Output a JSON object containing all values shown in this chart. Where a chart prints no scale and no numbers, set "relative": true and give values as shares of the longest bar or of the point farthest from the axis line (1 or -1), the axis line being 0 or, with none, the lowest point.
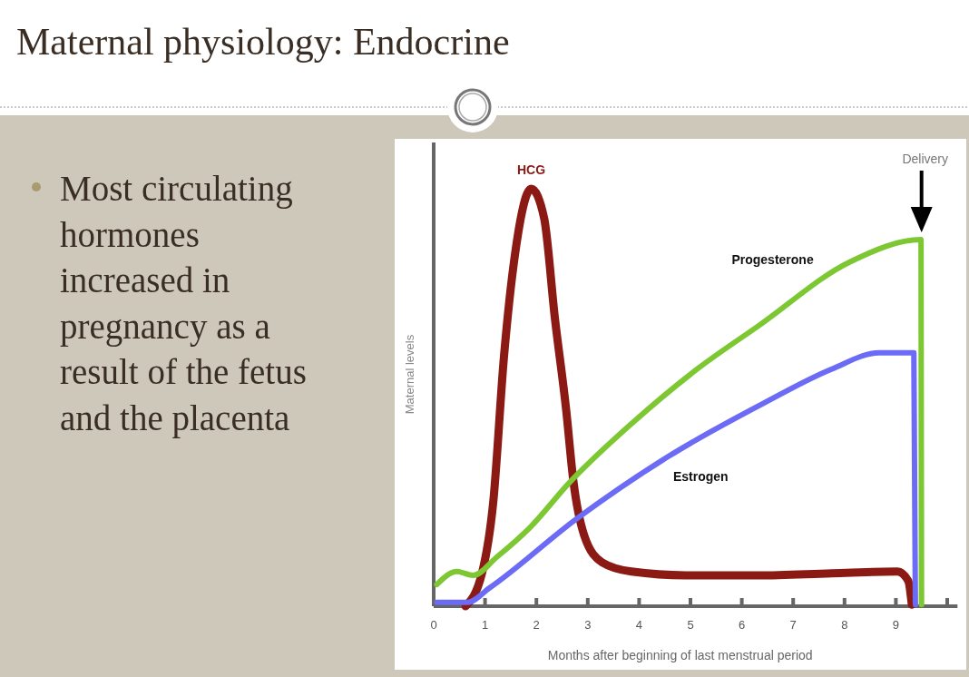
{
  "chart_data": {
    "type": "line",
    "title": "Maternal physiology: Endocrine",
    "xlabel": "Months after beginning of last menstrual period",
    "ylabel": "Maternal levels",
    "relative": true,
    "xlim": [
      0,
      10.2
    ],
    "xticks": [
      0,
      1,
      2,
      3,
      4,
      5,
      6,
      7,
      8,
      9,
      {
        "value": 10,
        "label": null
      }
    ],
    "grid": false,
    "annotations": [
      "Most circulating hormones increased in pregnancy as a result of the fetus and the placenta",
      "Delivery"
    ],
    "series": [
      {
        "name": "HCG",
        "color": "#8b1a14",
        "x": [
          0.62,
          0.94,
          1.16,
          1.37,
          1.58,
          1.9,
          2.15,
          2.36,
          2.58,
          2.72,
          2.93,
          3.28,
          3.85,
          4.91,
          6.33,
          7.75,
          9.03,
          9.24,
          9.31
        ],
        "values": [
          0,
          0.079,
          0.25,
          0.6,
          0.84,
          1,
          0.93,
          0.69,
          0.47,
          0.3,
          0.17,
          0.105,
          0.083,
          0.074,
          0.074,
          0.079,
          0.083,
          0.061,
          0.004
        ]
      },
      {
        "name": "Progesterone",
        "color": "#7dc832",
        "x": [
          0.06,
          0.45,
          0.77,
          1.23,
          1.87,
          2.65,
          3.85,
          5.13,
          6.33,
          8.11,
          9.49,
          9.5
        ],
        "values": [
          0.052,
          0.083,
          0.074,
          0.118,
          0.188,
          0.297,
          0.437,
          0.568,
          0.672,
          0.825,
          0.878,
          0.004
        ]
      },
      {
        "name": "Estrogen",
        "color": "#6b6bf5",
        "x": [
          0.06,
          0.66,
          1.09,
          2.79,
          4.56,
          6.33,
          7.75,
          8.67,
          9.35,
          9.38
        ],
        "values": [
          0.009,
          0.009,
          0.044,
          0.21,
          0.358,
          0.48,
          0.568,
          0.607,
          0.607,
          0.004
        ]
      }
    ]
  }
}
